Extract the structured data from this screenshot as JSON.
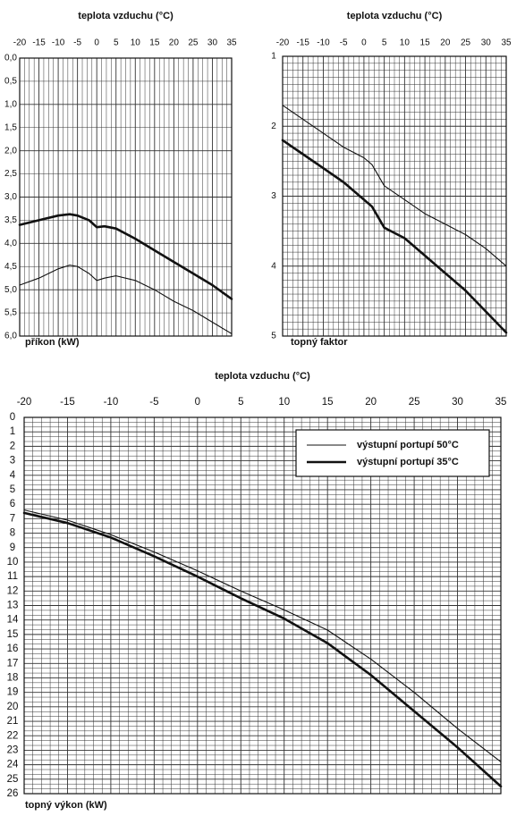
{
  "chart_data": [
    {
      "id": "prikon",
      "type": "line",
      "title": "teplota vzduchu (°C)",
      "ylabel": "příkon (kW)",
      "x_ticks": [
        "-20",
        "-15",
        "-10",
        "-5",
        "0",
        "5",
        "10",
        "15",
        "20",
        "25",
        "30",
        "35"
      ],
      "y_ticks": [
        "0,0",
        "0,5",
        "1,0",
        "1,5",
        "2,0",
        "2,5",
        "3,0",
        "3,5",
        "4,0",
        "4,5",
        "5,0",
        "5,5",
        "6,0"
      ],
      "xlim": [
        -20,
        35
      ],
      "ylim": [
        0,
        6
      ],
      "y_inverted": true,
      "grid": true,
      "series": [
        {
          "style": "thick",
          "color": "#111111",
          "x": [
            -20,
            -15,
            -10,
            -7,
            -5,
            -2,
            0,
            2,
            5,
            10,
            15,
            20,
            25,
            30,
            35
          ],
          "y": [
            3.6,
            3.5,
            3.4,
            3.37,
            3.4,
            3.5,
            3.65,
            3.63,
            3.68,
            3.9,
            4.15,
            4.4,
            4.65,
            4.9,
            5.2
          ]
        },
        {
          "style": "thin",
          "color": "#111111",
          "x": [
            -20,
            -15,
            -10,
            -7,
            -5,
            -2,
            0,
            2,
            5,
            10,
            15,
            20,
            25,
            30,
            35
          ],
          "y": [
            4.9,
            4.75,
            4.55,
            4.47,
            4.5,
            4.65,
            4.8,
            4.75,
            4.7,
            4.8,
            5.0,
            5.25,
            5.45,
            5.7,
            5.95
          ]
        }
      ]
    },
    {
      "id": "topny-faktor",
      "type": "line",
      "title": "teplota vzduchu (°C)",
      "ylabel": "topný faktor",
      "x_ticks": [
        "-20",
        "-15",
        "-10",
        "-5",
        "0",
        "5",
        "10",
        "15",
        "20",
        "25",
        "30",
        "35"
      ],
      "y_ticks": [
        "1",
        "2",
        "3",
        "4",
        "5"
      ],
      "xlim": [
        -20,
        35
      ],
      "ylim": [
        1,
        5
      ],
      "y_inverted": true,
      "grid": true,
      "series": [
        {
          "style": "thin",
          "color": "#111111",
          "x": [
            -20,
            -15,
            -10,
            -5,
            0,
            2,
            5,
            10,
            15,
            20,
            25,
            30,
            35
          ],
          "y": [
            1.7,
            1.9,
            2.1,
            2.3,
            2.45,
            2.55,
            2.85,
            3.05,
            3.25,
            3.4,
            3.55,
            3.75,
            4.0
          ]
        },
        {
          "style": "thick",
          "color": "#111111",
          "x": [
            -20,
            -15,
            -10,
            -5,
            0,
            2,
            5,
            10,
            15,
            20,
            25,
            30,
            35
          ],
          "y": [
            2.2,
            2.4,
            2.6,
            2.8,
            3.05,
            3.15,
            3.45,
            3.6,
            3.85,
            4.1,
            4.35,
            4.65,
            4.95
          ]
        }
      ]
    },
    {
      "id": "topny-vykon",
      "type": "line",
      "title": "teplota vzduchu (°C)",
      "ylabel": "topný výkon (kW)",
      "x_ticks": [
        "-20",
        "-15",
        "-10",
        "-5",
        "0",
        "5",
        "10",
        "15",
        "20",
        "25",
        "30",
        "35"
      ],
      "y_ticks": [
        "0",
        "1",
        "2",
        "3",
        "4",
        "5",
        "6",
        "7",
        "8",
        "9",
        "10",
        "11",
        "12",
        "13",
        "14",
        "15",
        "16",
        "17",
        "18",
        "19",
        "20",
        "21",
        "22",
        "23",
        "24",
        "25",
        "26"
      ],
      "xlim": [
        -20,
        35
      ],
      "ylim": [
        0,
        26
      ],
      "y_inverted": true,
      "grid": true,
      "legend": {
        "position": "top-right",
        "entries": [
          {
            "label": "výstupní  portupí 50°C",
            "style": "thin"
          },
          {
            "label": "výstupní  portupí 35°C",
            "style": "thick"
          }
        ]
      },
      "series": [
        {
          "style": "thin",
          "color": "#111111",
          "x": [
            -20,
            -15,
            -10,
            -5,
            0,
            5,
            10,
            15,
            20,
            25,
            30,
            35
          ],
          "y": [
            6.4,
            7.1,
            8.1,
            9.3,
            10.6,
            12.0,
            13.3,
            14.7,
            16.7,
            19.0,
            21.5,
            23.8
          ]
        },
        {
          "style": "thick",
          "color": "#111111",
          "x": [
            -20,
            -15,
            -10,
            -5,
            0,
            5,
            10,
            15,
            20,
            25,
            30,
            35
          ],
          "y": [
            6.6,
            7.3,
            8.3,
            9.6,
            11.0,
            12.5,
            13.9,
            15.6,
            17.8,
            20.3,
            22.8,
            25.5
          ]
        }
      ]
    }
  ]
}
